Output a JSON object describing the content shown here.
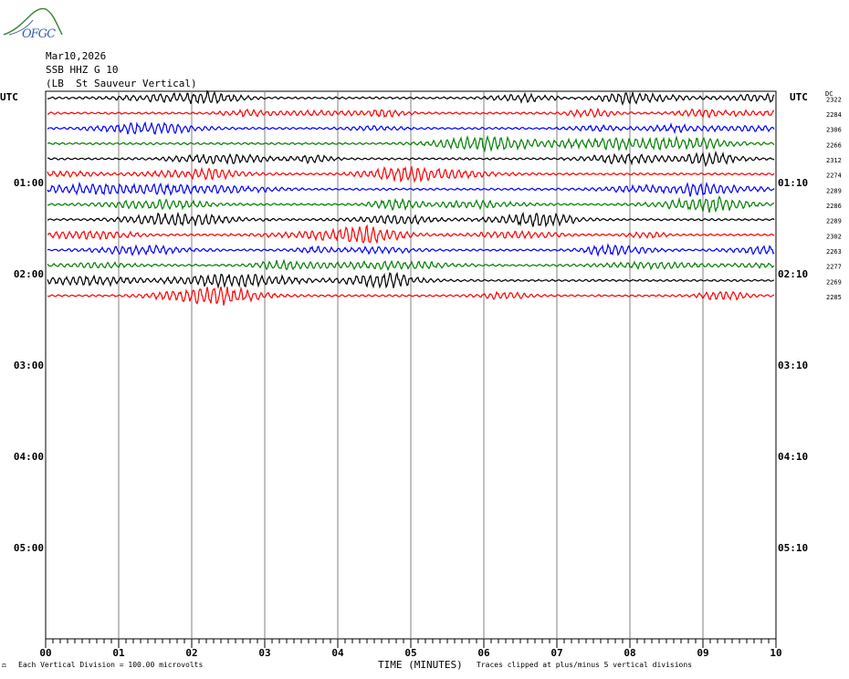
{
  "header": {
    "date": "Mar10,2026",
    "station": "SSB HHZ G 10",
    "location": "(LB  St Sauveur Vertical)"
  },
  "logo": {
    "text": "OFGC",
    "icon": "mountain-logo-icon"
  },
  "chart_data": {
    "type": "line",
    "x_axis": {
      "label": "TIME (MINUTES)",
      "ticks": [
        "00",
        "01",
        "02",
        "03",
        "04",
        "05",
        "06",
        "07",
        "08",
        "09",
        "10"
      ],
      "range": [
        0,
        10
      ]
    },
    "left_axis": {
      "label": "UTC",
      "hour_labels": [
        "01:00",
        "02:00",
        "03:00",
        "04:00",
        "05:00"
      ]
    },
    "right_axis": {
      "label": "UTC",
      "dc_label": "DC",
      "hour_labels": [
        "01:10",
        "02:10",
        "03:10",
        "04:10",
        "05:10"
      ]
    },
    "rows_total": 36,
    "traces": [
      {
        "row": 0,
        "color": "#000000",
        "dc": "2322"
      },
      {
        "row": 1,
        "color": "#ff0000",
        "dc": "2284"
      },
      {
        "row": 2,
        "color": "#0000ff",
        "dc": "2306"
      },
      {
        "row": 3,
        "color": "#008000",
        "dc": "2266"
      },
      {
        "row": 4,
        "color": "#000000",
        "dc": "2312"
      },
      {
        "row": 5,
        "color": "#ff0000",
        "dc": "2274"
      },
      {
        "row": 6,
        "color": "#0000ff",
        "dc": "2289"
      },
      {
        "row": 7,
        "color": "#008000",
        "dc": "2286"
      },
      {
        "row": 8,
        "color": "#000000",
        "dc": "2289"
      },
      {
        "row": 9,
        "color": "#ff0000",
        "dc": "2302"
      },
      {
        "row": 10,
        "color": "#0000ff",
        "dc": "2263"
      },
      {
        "row": 11,
        "color": "#008000",
        "dc": "2277"
      },
      {
        "row": 12,
        "color": "#000000",
        "dc": "2269"
      },
      {
        "row": 13,
        "color": "#ff0000",
        "dc": "2285"
      }
    ],
    "grid": true
  },
  "footer": {
    "division": "Each Vertical Division =  100.00 microvolts",
    "clipped": "Traces clipped at plus/minus 5 vertical divisions"
  }
}
